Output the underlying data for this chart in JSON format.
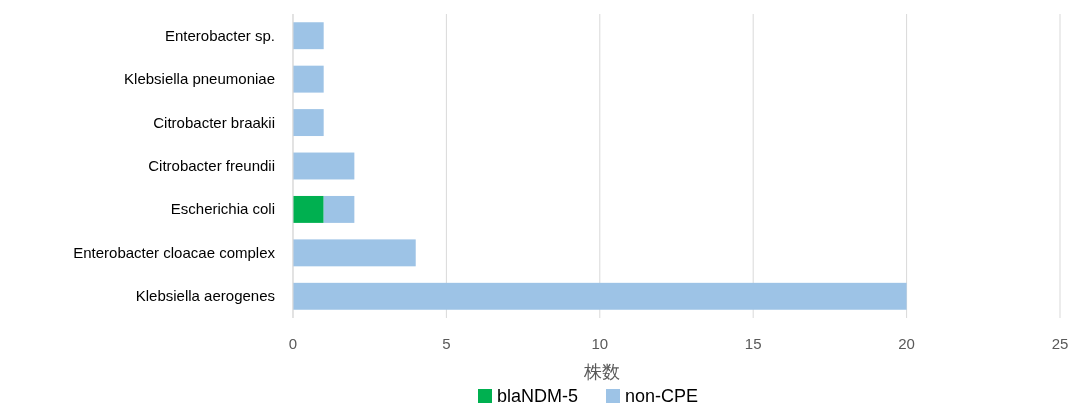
{
  "chart_data": {
    "type": "bar",
    "orientation": "horizontal",
    "stacked": true,
    "categories": [
      "Enterobacter sp.",
      "Klebsiella pneumoniae",
      "Citrobacter braakii",
      "Citrobacter freundii",
      "Escherichia coli",
      "Enterobacter cloacae complex",
      "Klebsiella aerogenes"
    ],
    "series": [
      {
        "name": "blaNDM-5",
        "color": "#00b050",
        "values": [
          0,
          0,
          0,
          0,
          1,
          0,
          0
        ]
      },
      {
        "name": "non-CPE",
        "color": "#9dc3e6",
        "values": [
          1,
          1,
          1,
          2,
          1,
          4,
          20
        ]
      }
    ],
    "xlim": [
      0,
      25
    ],
    "xticks": [
      0,
      5,
      10,
      15,
      20,
      25
    ],
    "grid": "x",
    "xlabel": "株数",
    "legend": "bottom"
  }
}
